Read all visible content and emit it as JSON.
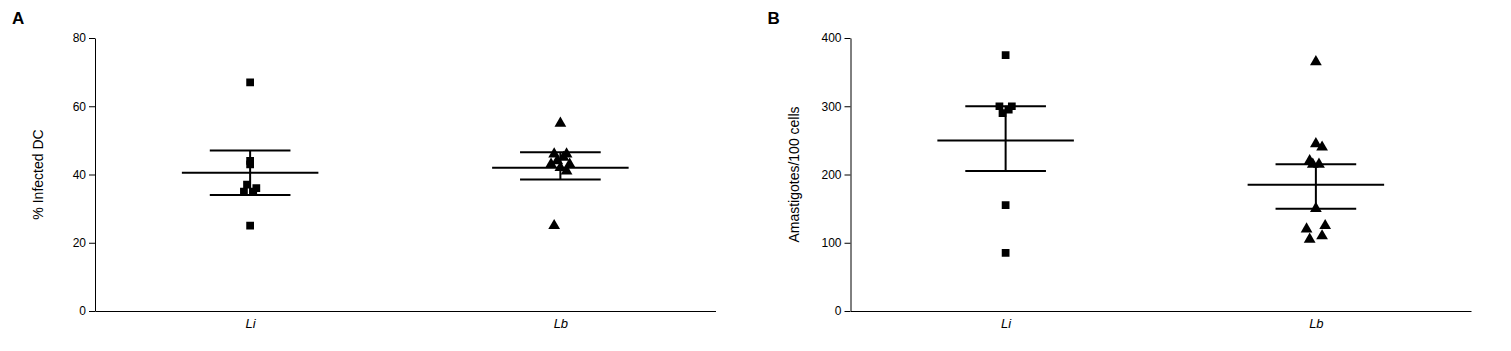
{
  "chart_data": [
    {
      "type": "scatter",
      "title": "A",
      "ylabel": "% Infected DC",
      "xlim": [
        0.5,
        2.5
      ],
      "xticks": [
        {
          "value": 1,
          "label": "Li"
        },
        {
          "value": 2,
          "label": "Lb"
        }
      ],
      "ylim": [
        0,
        80
      ],
      "yticks": [
        0,
        20,
        40,
        60,
        80
      ],
      "grid": false,
      "color": "#000000",
      "series": [
        {
          "marker": "square",
          "x": [
            1.0,
            1.0,
            1.0,
            1.02,
            0.98,
            1.01,
            0.99,
            1.0
          ],
          "values": [
            67,
            44,
            43,
            36,
            35,
            35,
            37,
            25
          ],
          "mean": 40.5,
          "sem_upper": 47.0,
          "sem_lower": 34.0
        },
        {
          "marker": "triangle",
          "x": [
            2.0,
            2.02,
            1.98,
            2.01,
            1.99,
            2.03,
            1.97,
            2.0,
            2.02,
            1.98
          ],
          "values": [
            55,
            46,
            46,
            45,
            44,
            43,
            43,
            42,
            41,
            25
          ],
          "mean": 42.0,
          "sem_upper": 46.5,
          "sem_lower": 38.5
        }
      ]
    },
    {
      "type": "scatter",
      "title": "B",
      "ylabel": "Amastigotes/100 cells",
      "xlim": [
        0.5,
        2.5
      ],
      "xticks": [
        {
          "value": 1,
          "label": "Li"
        },
        {
          "value": 2,
          "label": "Lb"
        }
      ],
      "ylim": [
        0,
        400
      ],
      "yticks": [
        0,
        100,
        200,
        300,
        400
      ],
      "grid": false,
      "color": "#000000",
      "series": [
        {
          "marker": "square",
          "x": [
            1.0,
            1.02,
            0.98,
            1.01,
            0.99,
            1.0,
            1.0
          ],
          "values": [
            375,
            300,
            300,
            295,
            290,
            155,
            85
          ],
          "mean": 250,
          "sem_upper": 300,
          "sem_lower": 205
        },
        {
          "marker": "triangle",
          "x": [
            2.0,
            2.0,
            2.02,
            1.98,
            2.01,
            1.99,
            2.0,
            2.03,
            1.97,
            2.02,
            1.98
          ],
          "values": [
            365,
            245,
            240,
            220,
            215,
            215,
            150,
            125,
            120,
            110,
            105
          ],
          "mean": 185,
          "sem_upper": 215,
          "sem_lower": 150
        }
      ]
    }
  ]
}
